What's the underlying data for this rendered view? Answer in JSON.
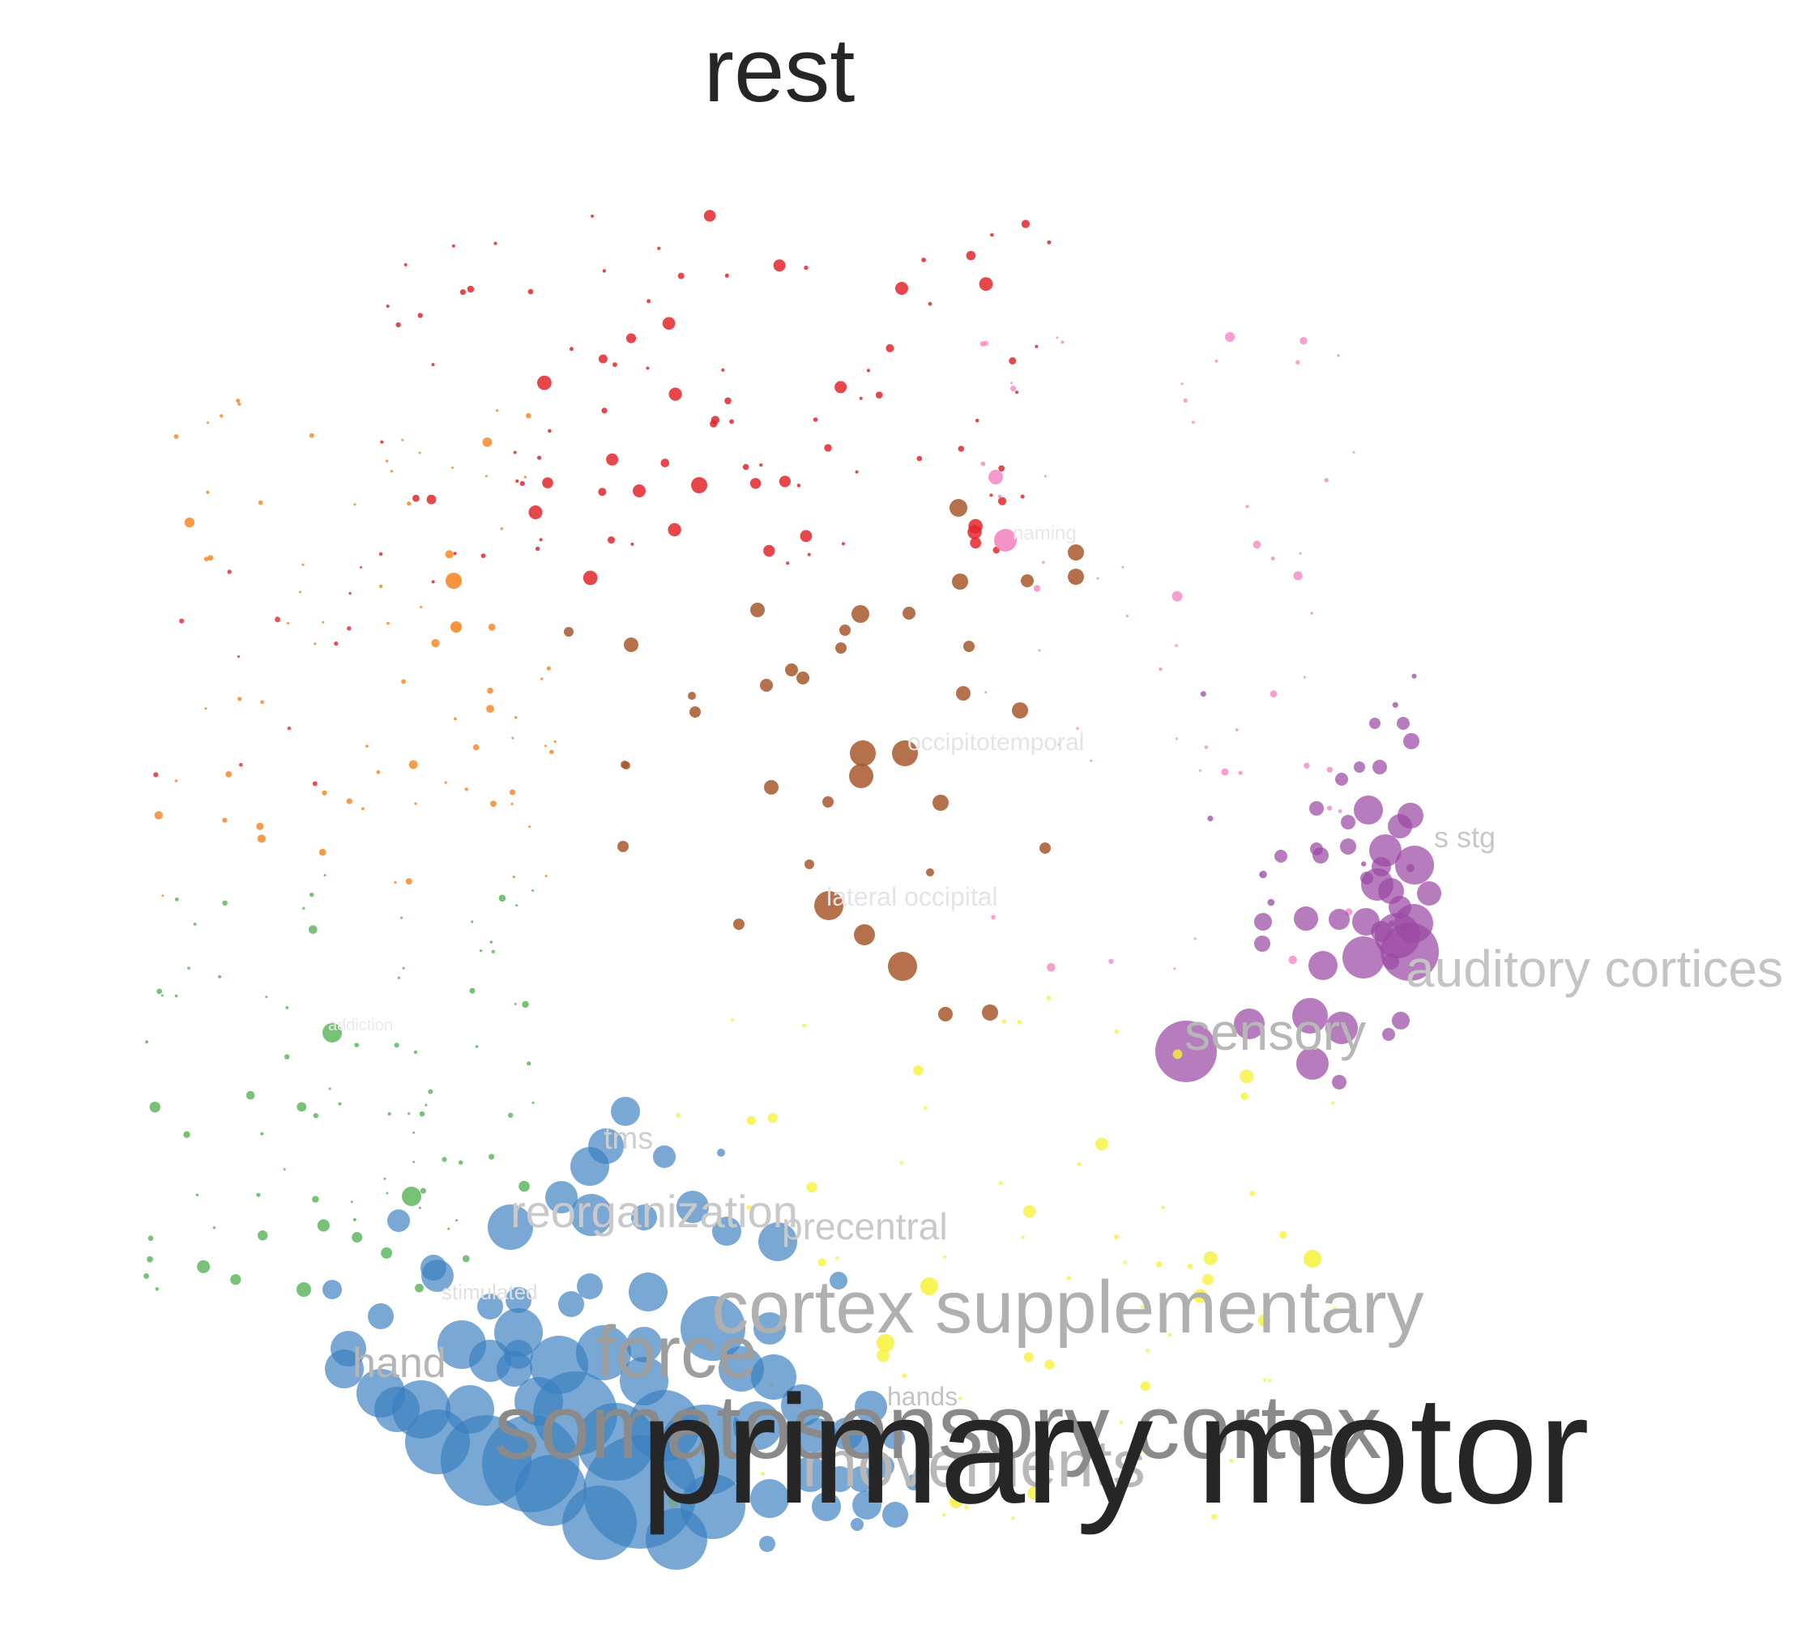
{
  "title": "rest",
  "highlight_term": "primary motor",
  "clusters": [
    {
      "id": "blue",
      "color": "#3a7fbf"
    },
    {
      "id": "purple",
      "color": "#9b4aa3"
    },
    {
      "id": "brown",
      "color": "#a8582c"
    },
    {
      "id": "red",
      "color": "#e3262b"
    },
    {
      "id": "pink",
      "color": "#f47fc1"
    },
    {
      "id": "orange",
      "color": "#f7811b"
    },
    {
      "id": "green",
      "color": "#4aae4a"
    },
    {
      "id": "yellow",
      "color": "#f5f23a"
    }
  ],
  "labels": [
    {
      "text": "somatosensory cortex",
      "emphasis": "high"
    },
    {
      "text": "cortex supplementary",
      "emphasis": "medium"
    },
    {
      "text": "force",
      "emphasis": "medium"
    },
    {
      "text": "movements",
      "emphasis": "medium"
    },
    {
      "text": "auditory cortices",
      "emphasis": "low"
    },
    {
      "text": "sensory",
      "emphasis": "low"
    },
    {
      "text": "reorganization",
      "emphasis": "low"
    },
    {
      "text": "precentral",
      "emphasis": "low"
    },
    {
      "text": "tms",
      "emphasis": "low"
    },
    {
      "text": "hand",
      "emphasis": "low"
    },
    {
      "text": "s stg",
      "emphasis": "low"
    },
    {
      "text": "occipitotemporal",
      "emphasis": "faint"
    },
    {
      "text": "lateral occipital",
      "emphasis": "faint"
    },
    {
      "text": "naming",
      "emphasis": "faint"
    },
    {
      "text": "hands",
      "emphasis": "faint"
    },
    {
      "text": "stimulated",
      "emphasis": "faint"
    },
    {
      "text": "addiction",
      "emphasis": "faint"
    }
  ]
}
